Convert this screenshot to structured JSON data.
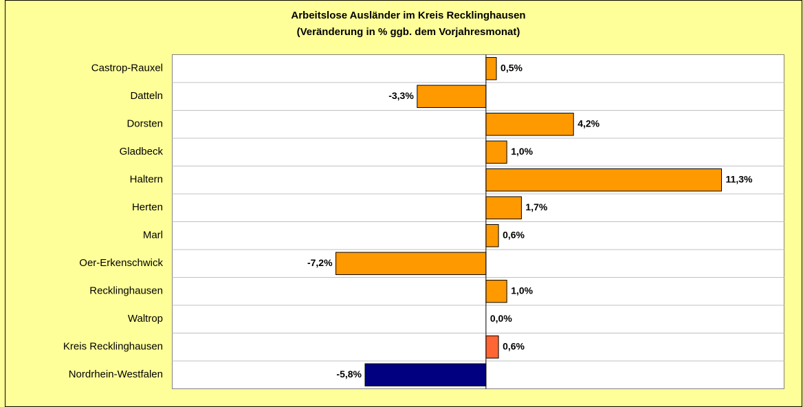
{
  "chart_data": {
    "type": "bar",
    "orientation": "horizontal",
    "title": "Arbeitslose Ausländer im Kreis Recklinghausen",
    "subtitle": "(Veränderung in % ggb. dem Vorjahresmonat)",
    "categories": [
      "Castrop-Rauxel",
      "Datteln",
      "Dorsten",
      "Gladbeck",
      "Haltern",
      "Herten",
      "Marl",
      "Oer-Erkenschwick",
      "Recklinghausen",
      "Waltrop",
      "Kreis Recklinghausen",
      "Nordrhein-Westfalen"
    ],
    "values": [
      0.5,
      -3.3,
      4.2,
      1.0,
      11.3,
      1.7,
      0.6,
      -7.2,
      1.0,
      0.0,
      0.6,
      -5.8
    ],
    "value_labels": [
      "0,5%",
      "-3,3%",
      "4,2%",
      "1,0%",
      "11,3%",
      "1,7%",
      "0,6%",
      "-7,2%",
      "1,0%",
      "0,0%",
      "0,6%",
      "-5,8%"
    ],
    "colors": [
      "#ff9900",
      "#ff9900",
      "#ff9900",
      "#ff9900",
      "#ff9900",
      "#ff9900",
      "#ff9900",
      "#ff9900",
      "#ff9900",
      "#ff9900",
      "#ff6633",
      "#000080"
    ],
    "xlim": [
      -15.05,
      14.3
    ]
  }
}
